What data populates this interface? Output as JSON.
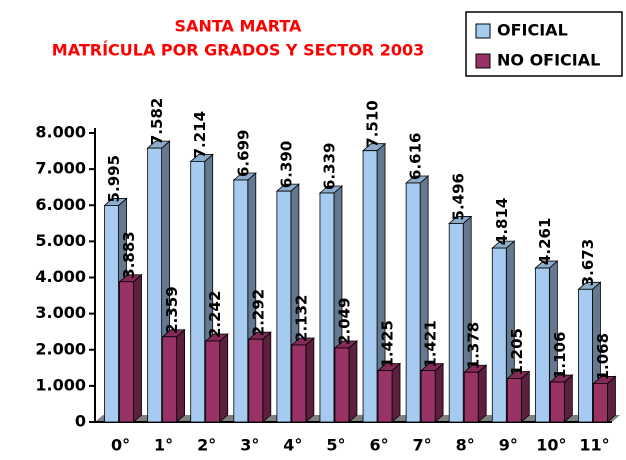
{
  "chart_data": {
    "type": "bar3d",
    "title": "SANTA MARTA",
    "subtitle": "MATRÍCULA POR GRADOS Y SECTOR 2003",
    "categories": [
      "0°",
      "1°",
      "2°",
      "3°",
      "4°",
      "5°",
      "6°",
      "7°",
      "8°",
      "9°",
      "10°",
      "11°"
    ],
    "series": [
      {
        "name": "OFICIAL",
        "color": "#a6caf0",
        "values": [
          5995,
          7582,
          7214,
          6699,
          6390,
          6339,
          7510,
          6616,
          5496,
          4814,
          4261,
          3673
        ],
        "value_labels": [
          "5.995",
          "7.582",
          "7.214",
          "6.699",
          "6.390",
          "6.339",
          "7.510",
          "6.616",
          "5.496",
          "4.814",
          "4.261",
          "3.673"
        ]
      },
      {
        "name": "NO OFICIAL",
        "color": "#993366",
        "values": [
          3883,
          2359,
          2242,
          2292,
          2132,
          2049,
          1425,
          1421,
          1378,
          1205,
          1106,
          1068
        ],
        "value_labels": [
          "3.883",
          "2.359",
          "2.242",
          "2.292",
          "2.132",
          "2.049",
          "1.425",
          "1.421",
          "1.378",
          "1.205",
          "1.106",
          "1.068"
        ]
      }
    ],
    "ylim": [
      0,
      8000
    ],
    "yticks": [
      0,
      {
        "value": 1000,
        "label": "1.000"
      },
      {
        "value": 2000,
        "label": "2.000"
      },
      {
        "value": 3000,
        "label": "3.000"
      },
      {
        "value": 4000,
        "label": "4.000"
      },
      {
        "value": 5000,
        "label": "5.000"
      },
      {
        "value": 6000,
        "label": "6.000"
      },
      {
        "value": 7000,
        "label": "7.000"
      },
      {
        "value": 8000,
        "label": "8.000"
      }
    ],
    "legend": "top-right"
  }
}
